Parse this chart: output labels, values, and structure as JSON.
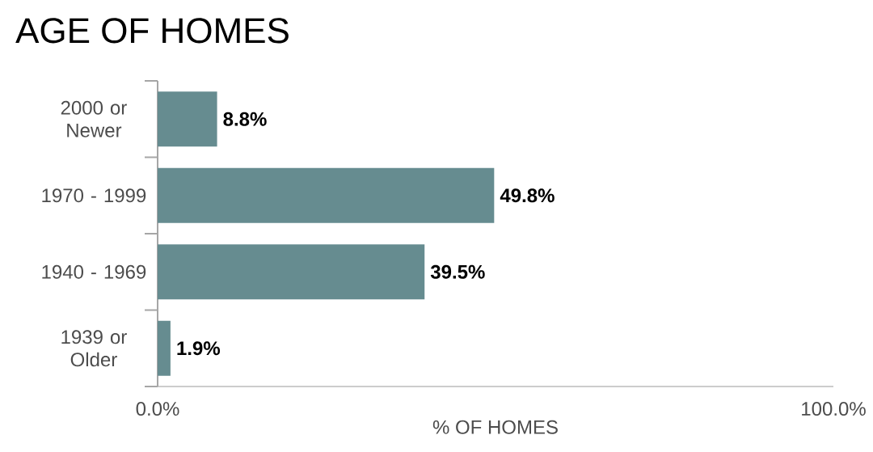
{
  "chart_data": {
    "type": "bar",
    "orientation": "horizontal",
    "title": "AGE OF HOMES",
    "xlabel": "% OF HOMES",
    "categories": [
      "2000 or Newer",
      "1970 - 1999",
      "1940 - 1969",
      "1939 or Older"
    ],
    "values": [
      8.8,
      49.8,
      39.5,
      1.9
    ],
    "value_labels": [
      "8.8%",
      "49.8%",
      "39.5%",
      "1.9%"
    ],
    "color": "#668c90",
    "xlim": [
      0,
      100
    ],
    "xticks": [
      {
        "value": 0,
        "label": "0.0%"
      },
      {
        "value": 100,
        "label": "100.0%"
      }
    ],
    "grid": false
  }
}
